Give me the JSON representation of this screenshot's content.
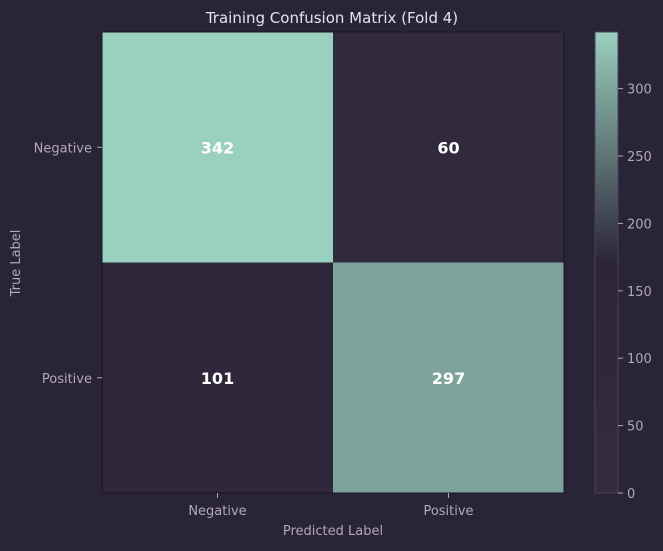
{
  "chart_data": {
    "type": "heatmap",
    "title": "Training Confusion Matrix (Fold 4)",
    "xlabel": "Predicted Label",
    "ylabel": "True Label",
    "x_categories": [
      "Negative",
      "Positive"
    ],
    "y_categories": [
      "Negative",
      "Positive"
    ],
    "values": [
      [
        342,
        60
      ],
      [
        101,
        297
      ]
    ],
    "colorbar": {
      "vmin": 0,
      "vmax": 342,
      "ticks": [
        0,
        50,
        100,
        150,
        200,
        250,
        300
      ],
      "colors": [
        "#342c40",
        "#2b2537",
        "#9ad0be"
      ]
    }
  }
}
